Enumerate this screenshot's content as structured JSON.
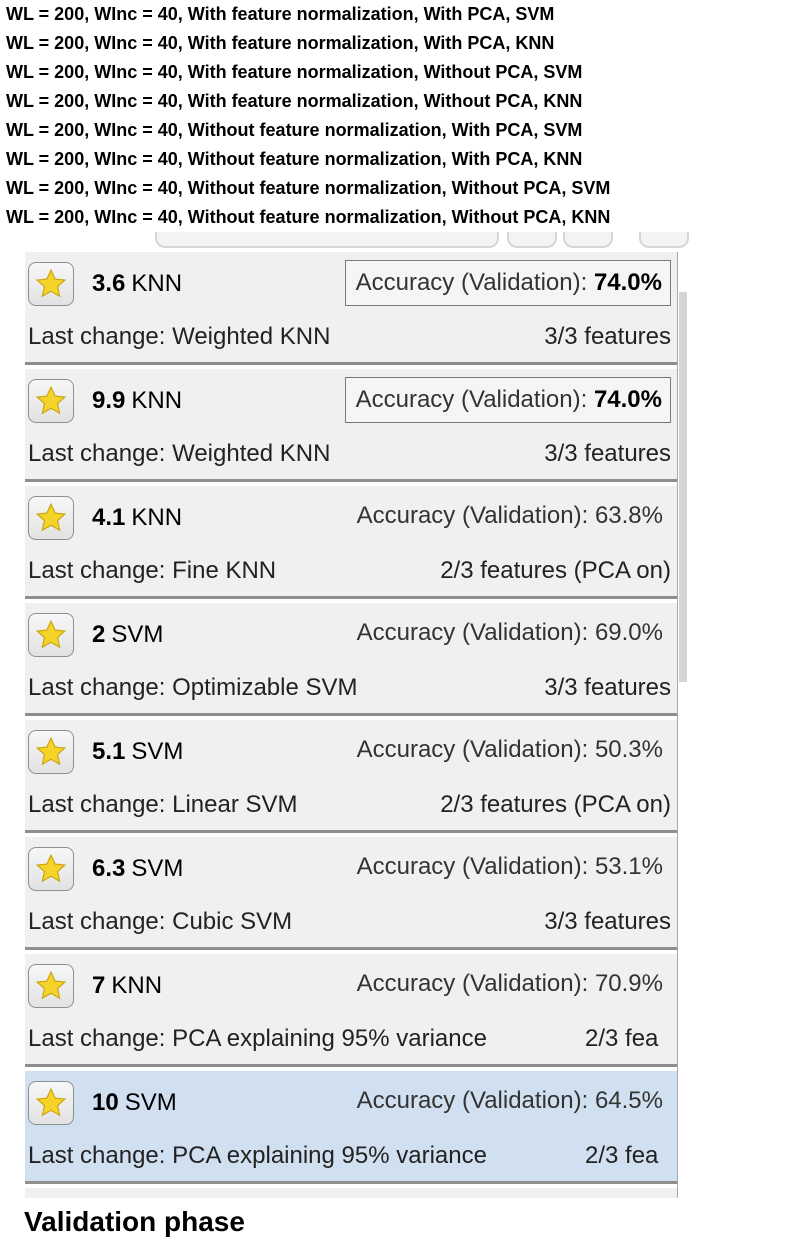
{
  "captions": [
    "WL = 200, WInc = 40, With feature normalization, With PCA, SVM",
    "WL = 200, WInc = 40, With feature normalization, With PCA, KNN",
    "WL = 200, WInc = 40, With feature normalization, Without PCA, SVM",
    "WL = 200, WInc = 40, With feature normalization, Without PCA, KNN",
    "WL = 200, WInc = 40, Without feature normalization, With PCA, SVM",
    "WL = 200, WInc = 40, Without feature normalization, With PCA, KNN",
    "WL = 200, WInc = 40, Without feature normalization, Without PCA, SVM",
    "WL = 200, WInc = 40, Without feature normalization, Without PCA, KNN"
  ],
  "models": [
    {
      "number": "3.6",
      "type": "KNN",
      "acc_label": "Accuracy (Validation):",
      "acc_value": "74.0%",
      "best": true,
      "last_change": "Last change: Weighted KNN",
      "features": "3/3 features"
    },
    {
      "number": "9.9",
      "type": "KNN",
      "acc_label": "Accuracy (Validation):",
      "acc_value": "74.0%",
      "best": true,
      "last_change": "Last change: Weighted KNN",
      "features": "3/3 features"
    },
    {
      "number": "4.1",
      "type": "KNN",
      "acc_label": "Accuracy (Validation):",
      "acc_value": "63.8%",
      "best": false,
      "last_change": "Last change: Fine KNN",
      "features": "2/3 features (PCA on)"
    },
    {
      "number": "2",
      "type": "SVM",
      "acc_label": "Accuracy (Validation):",
      "acc_value": "69.0%",
      "best": false,
      "last_change": "Last change: Optimizable SVM",
      "features": "3/3 features"
    },
    {
      "number": "5.1",
      "type": "SVM",
      "acc_label": "Accuracy (Validation):",
      "acc_value": "50.3%",
      "best": false,
      "last_change": "Last change: Linear SVM",
      "features": "2/3 features (PCA on)"
    },
    {
      "number": "6.3",
      "type": "SVM",
      "acc_label": "Accuracy (Validation):",
      "acc_value": "53.1%",
      "best": false,
      "last_change": "Last change: Cubic SVM",
      "features": "3/3 features"
    },
    {
      "number": "7",
      "type": "KNN",
      "acc_label": "Accuracy (Validation):",
      "acc_value": "70.9%",
      "best": false,
      "last_change": "Last change: PCA explaining 95% variance",
      "features": "2/3 fea"
    },
    {
      "number": "10",
      "type": "SVM",
      "acc_label": "Accuracy (Validation):",
      "acc_value": "64.5%",
      "best": false,
      "selected": true,
      "last_change": "Last change: PCA explaining 95% variance",
      "features": "2/3 fea"
    }
  ],
  "phase_title": "Validation phase",
  "icons": {
    "favorite": "star-icon"
  },
  "colors": {
    "card_bg": "#f0f0f0",
    "selected_bg": "#d1e0f1",
    "star": "#f5d328"
  }
}
